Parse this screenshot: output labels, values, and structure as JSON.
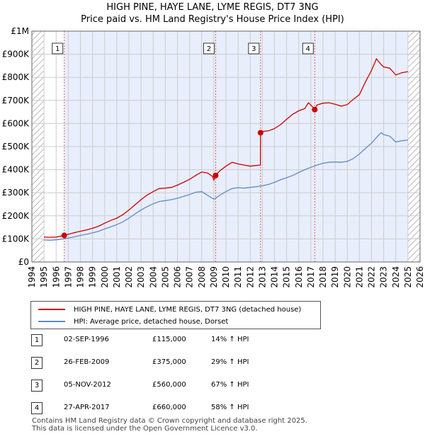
{
  "chart_data": {
    "type": "line",
    "title": "HIGH PINE, HAYE LANE, LYME REGIS, DT7 3NG",
    "subtitle": "Price paid vs. HM Land Registry's House Price Index (HPI)",
    "xlabel": "",
    "ylabel": "",
    "xlim": [
      1994,
      2026
    ],
    "ylim": [
      0,
      1000000
    ],
    "x_ticks": [
      "1994",
      "1995",
      "1996",
      "1997",
      "1998",
      "1999",
      "2000",
      "2001",
      "2002",
      "2003",
      "2004",
      "2005",
      "2006",
      "2007",
      "2008",
      "2009",
      "2010",
      "2011",
      "2012",
      "2013",
      "2014",
      "2015",
      "2016",
      "2017",
      "2018",
      "2019",
      "2020",
      "2021",
      "2022",
      "2023",
      "2024",
      "2025",
      "2026"
    ],
    "y_ticks": [
      {
        "value": 0,
        "label": "£0"
      },
      {
        "value": 100000,
        "label": "£100K"
      },
      {
        "value": 200000,
        "label": "£200K"
      },
      {
        "value": 300000,
        "label": "£300K"
      },
      {
        "value": 400000,
        "label": "£400K"
      },
      {
        "value": 500000,
        "label": "£500K"
      },
      {
        "value": 600000,
        "label": "£600K"
      },
      {
        "value": 700000,
        "label": "£700K"
      },
      {
        "value": 800000,
        "label": "£800K"
      },
      {
        "value": 900000,
        "label": "£900K"
      },
      {
        "value": 1000000,
        "label": "£1M"
      }
    ],
    "data_start": 1995.0,
    "data_end": 2025.0,
    "shaded_band": [
      1996.67,
      2025.0
    ],
    "series": [
      {
        "name": "HIGH PINE, HAYE LANE, LYME REGIS, DT7 3NG (detached house)",
        "color": "#cc0000",
        "points": [
          [
            1995.0,
            108000
          ],
          [
            1995.5,
            107000
          ],
          [
            1996.0,
            108000
          ],
          [
            1996.67,
            115000
          ],
          [
            1997.0,
            120000
          ],
          [
            1997.5,
            127000
          ],
          [
            1998.0,
            133000
          ],
          [
            1998.5,
            139000
          ],
          [
            1999.0,
            146000
          ],
          [
            1999.5,
            155000
          ],
          [
            2000.0,
            168000
          ],
          [
            2000.5,
            180000
          ],
          [
            2001.0,
            190000
          ],
          [
            2001.5,
            205000
          ],
          [
            2002.0,
            225000
          ],
          [
            2002.5,
            248000
          ],
          [
            2003.0,
            270000
          ],
          [
            2003.5,
            290000
          ],
          [
            2004.0,
            305000
          ],
          [
            2004.5,
            318000
          ],
          [
            2005.0,
            320000
          ],
          [
            2005.5,
            323000
          ],
          [
            2006.0,
            333000
          ],
          [
            2006.5,
            345000
          ],
          [
            2007.0,
            358000
          ],
          [
            2007.5,
            375000
          ],
          [
            2008.0,
            390000
          ],
          [
            2008.5,
            385000
          ],
          [
            2008.9,
            370000
          ],
          [
            2009.0,
            355000
          ],
          [
            2009.15,
            375000
          ],
          [
            2009.5,
            395000
          ],
          [
            2010.0,
            415000
          ],
          [
            2010.5,
            432000
          ],
          [
            2011.0,
            425000
          ],
          [
            2011.5,
            420000
          ],
          [
            2012.0,
            415000
          ],
          [
            2012.5,
            418000
          ],
          [
            2012.84,
            420000
          ],
          [
            2012.85,
            560000
          ],
          [
            2013.0,
            565000
          ],
          [
            2013.5,
            568000
          ],
          [
            2014.0,
            578000
          ],
          [
            2014.5,
            595000
          ],
          [
            2015.0,
            618000
          ],
          [
            2015.5,
            640000
          ],
          [
            2016.0,
            655000
          ],
          [
            2016.5,
            665000
          ],
          [
            2016.8,
            690000
          ],
          [
            2017.0,
            680000
          ],
          [
            2017.32,
            660000
          ],
          [
            2017.5,
            680000
          ],
          [
            2018.0,
            688000
          ],
          [
            2018.5,
            690000
          ],
          [
            2019.0,
            683000
          ],
          [
            2019.5,
            675000
          ],
          [
            2020.0,
            682000
          ],
          [
            2020.5,
            705000
          ],
          [
            2021.0,
            725000
          ],
          [
            2021.5,
            780000
          ],
          [
            2022.0,
            830000
          ],
          [
            2022.4,
            880000
          ],
          [
            2022.8,
            855000
          ],
          [
            2023.0,
            845000
          ],
          [
            2023.5,
            840000
          ],
          [
            2024.0,
            810000
          ],
          [
            2024.5,
            820000
          ],
          [
            2025.0,
            825000
          ]
        ]
      },
      {
        "name": "HPI: Average price, detached house, Dorset",
        "color": "#5b8cc8",
        "points": [
          [
            1995.0,
            95000
          ],
          [
            1995.5,
            94000
          ],
          [
            1996.0,
            96000
          ],
          [
            1996.67,
            100000
          ],
          [
            1997.0,
            104000
          ],
          [
            1997.5,
            109000
          ],
          [
            1998.0,
            115000
          ],
          [
            1998.5,
            120000
          ],
          [
            1999.0,
            126000
          ],
          [
            1999.5,
            133000
          ],
          [
            2000.0,
            143000
          ],
          [
            2000.5,
            152000
          ],
          [
            2001.0,
            162000
          ],
          [
            2001.5,
            174000
          ],
          [
            2002.0,
            190000
          ],
          [
            2002.5,
            208000
          ],
          [
            2003.0,
            225000
          ],
          [
            2003.5,
            240000
          ],
          [
            2004.0,
            252000
          ],
          [
            2004.5,
            262000
          ],
          [
            2005.0,
            266000
          ],
          [
            2005.5,
            270000
          ],
          [
            2006.0,
            276000
          ],
          [
            2006.5,
            284000
          ],
          [
            2007.0,
            292000
          ],
          [
            2007.5,
            302000
          ],
          [
            2008.0,
            305000
          ],
          [
            2008.5,
            288000
          ],
          [
            2009.0,
            272000
          ],
          [
            2009.2,
            278000
          ],
          [
            2009.5,
            290000
          ],
          [
            2010.0,
            305000
          ],
          [
            2010.5,
            318000
          ],
          [
            2011.0,
            322000
          ],
          [
            2011.5,
            320000
          ],
          [
            2012.0,
            323000
          ],
          [
            2012.5,
            326000
          ],
          [
            2013.0,
            330000
          ],
          [
            2013.5,
            336000
          ],
          [
            2014.0,
            345000
          ],
          [
            2014.5,
            356000
          ],
          [
            2015.0,
            365000
          ],
          [
            2015.5,
            375000
          ],
          [
            2016.0,
            388000
          ],
          [
            2016.5,
            400000
          ],
          [
            2017.0,
            410000
          ],
          [
            2017.5,
            420000
          ],
          [
            2018.0,
            428000
          ],
          [
            2018.5,
            432000
          ],
          [
            2019.0,
            433000
          ],
          [
            2019.5,
            432000
          ],
          [
            2020.0,
            436000
          ],
          [
            2020.5,
            448000
          ],
          [
            2021.0,
            468000
          ],
          [
            2021.5,
            492000
          ],
          [
            2022.0,
            515000
          ],
          [
            2022.5,
            545000
          ],
          [
            2022.8,
            560000
          ],
          [
            2023.0,
            552000
          ],
          [
            2023.5,
            545000
          ],
          [
            2024.0,
            520000
          ],
          [
            2024.5,
            525000
          ],
          [
            2025.0,
            528000
          ]
        ]
      }
    ],
    "sales": [
      {
        "num": "1",
        "x": 1996.67,
        "price": 115000,
        "date": "02-SEP-1996",
        "price_label": "£115,000",
        "hpi": "14% ↑ HPI"
      },
      {
        "num": "2",
        "x": 2009.15,
        "price": 375000,
        "date": "26-FEB-2009",
        "price_label": "£375,000",
        "hpi": "29% ↑ HPI"
      },
      {
        "num": "3",
        "x": 2012.85,
        "price": 560000,
        "date": "05-NOV-2012",
        "price_label": "£560,000",
        "hpi": "67% ↑ HPI"
      },
      {
        "num": "4",
        "x": 2017.32,
        "price": 660000,
        "date": "27-APR-2017",
        "price_label": "£660,000",
        "hpi": "58% ↑ HPI"
      }
    ],
    "colors": {
      "shade": "#e8eefb",
      "grid": "#cccccc",
      "marker_line": "#e06060",
      "box_border": "#333333"
    }
  },
  "legend": {
    "property": "HIGH PINE, HAYE LANE, LYME REGIS, DT7 3NG (detached house)",
    "hpi": "HPI: Average price, detached house, Dorset"
  },
  "footer": {
    "line1": "Contains HM Land Registry data © Crown copyright and database right 2025.",
    "line2": "This data is licensed under the Open Government Licence v3.0."
  }
}
